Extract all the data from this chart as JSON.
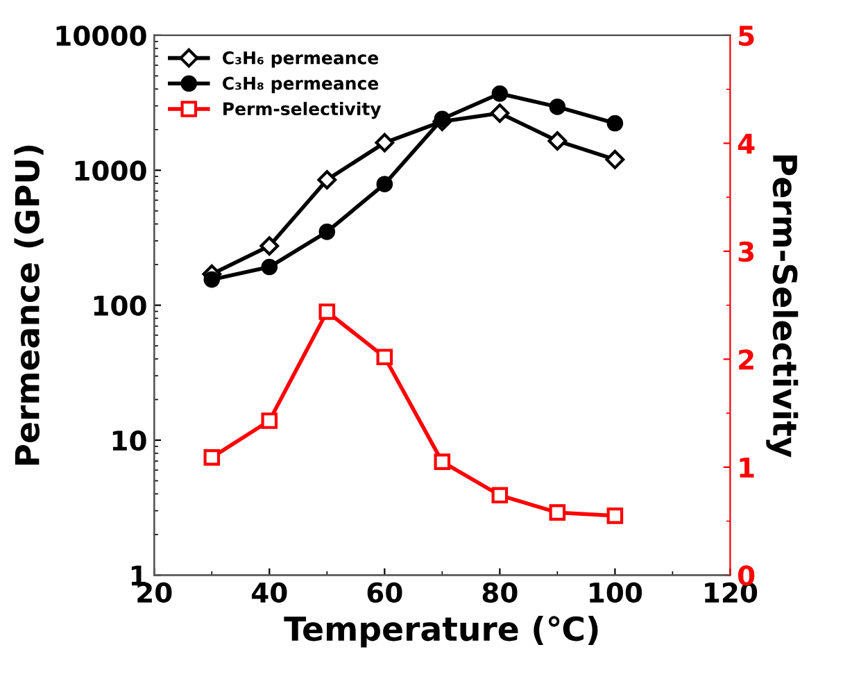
{
  "chart_data": {
    "type": "line",
    "xlabel": "Temperature (℃)",
    "ylabel": "Permeance (GPU)",
    "y2label": "Perm-Selectivity",
    "x": [
      30,
      40,
      50,
      60,
      70,
      80,
      90,
      100
    ],
    "series": [
      {
        "name": "C₃H₆ permeance",
        "color": "#000000",
        "marker": "diamond",
        "values": [
          170,
          275,
          850,
          1600,
          2300,
          2650,
          1650,
          1200
        ]
      },
      {
        "name": "C₃H₈ permeance",
        "color": "#000000",
        "marker": "circle",
        "values": [
          155,
          192,
          350,
          790,
          2400,
          3700,
          2950,
          2230
        ]
      },
      {
        "name": "Perm-selectivity",
        "color": "#ff0000",
        "marker": "square",
        "axis": "y2",
        "values": [
          1.09,
          1.43,
          2.44,
          2.02,
          1.05,
          0.74,
          0.58,
          0.55
        ]
      }
    ],
    "log": "y",
    "xlim": [
      20,
      120
    ],
    "xticks": [
      20,
      40,
      60,
      80,
      100,
      120
    ],
    "ylim": [
      1,
      10000
    ],
    "yticks": [
      1,
      10,
      100,
      1000,
      10000
    ],
    "y2lim": [
      0,
      5
    ],
    "y2ticks": [
      0,
      1,
      2,
      3,
      4,
      5
    ],
    "legend": "top left",
    "grid": false
  }
}
